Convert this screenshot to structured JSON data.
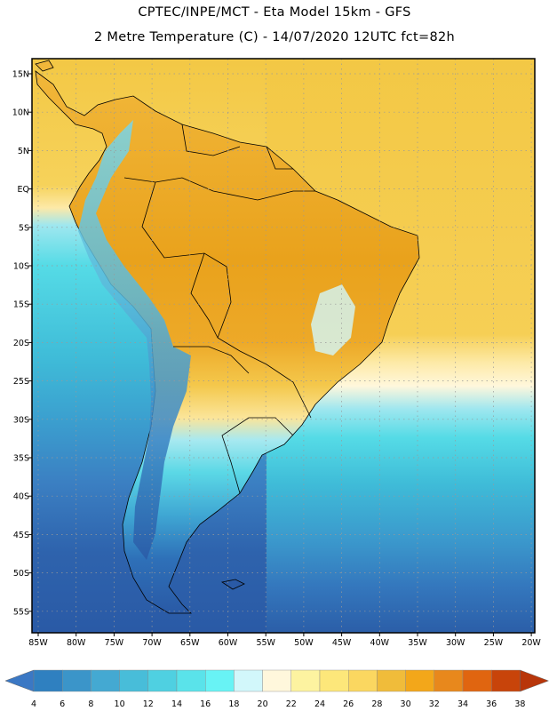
{
  "header": {
    "title_line1": "CPTEC/INPE/MCT -  Eta Model 15km - GFS",
    "title_line2": "2 Metre Temperature (C) - 14/07/2020 12UTC fct=82h"
  },
  "map": {
    "lat_labels": [
      "15N",
      "10N",
      "5N",
      "EQ",
      "5S",
      "10S",
      "15S",
      "20S",
      "25S",
      "30S",
      "35S",
      "40S",
      "45S",
      "50S",
      "55S"
    ],
    "lon_labels": [
      "85W",
      "80W",
      "75W",
      "70W",
      "65W",
      "60W",
      "55W",
      "50W",
      "45W",
      "40W",
      "35W",
      "30W",
      "25W",
      "20W"
    ],
    "colors": {
      "ocean_warm": "#f3c845",
      "ocean_cool": "#2a5fa8",
      "land_hot": "#e8a21a",
      "frame": "#000000"
    }
  },
  "colorbar": {
    "tick_labels": [
      "4",
      "6",
      "8",
      "10",
      "12",
      "14",
      "16",
      "18",
      "20",
      "22",
      "24",
      "26",
      "28",
      "30",
      "32",
      "34",
      "36",
      "38"
    ],
    "colors": [
      "#3b78c4",
      "#2f80c0",
      "#3b95c9",
      "#44a9d2",
      "#48bdd9",
      "#4fd0e1",
      "#5ae3ea",
      "#68f3f5",
      "#d2f7fb",
      "#fff7dc",
      "#fdf3a0",
      "#fde77a",
      "#fbd760",
      "#f0bc3a",
      "#f3a71a",
      "#e8881c",
      "#e06510",
      "#c8440a",
      "#b8360a"
    ]
  }
}
